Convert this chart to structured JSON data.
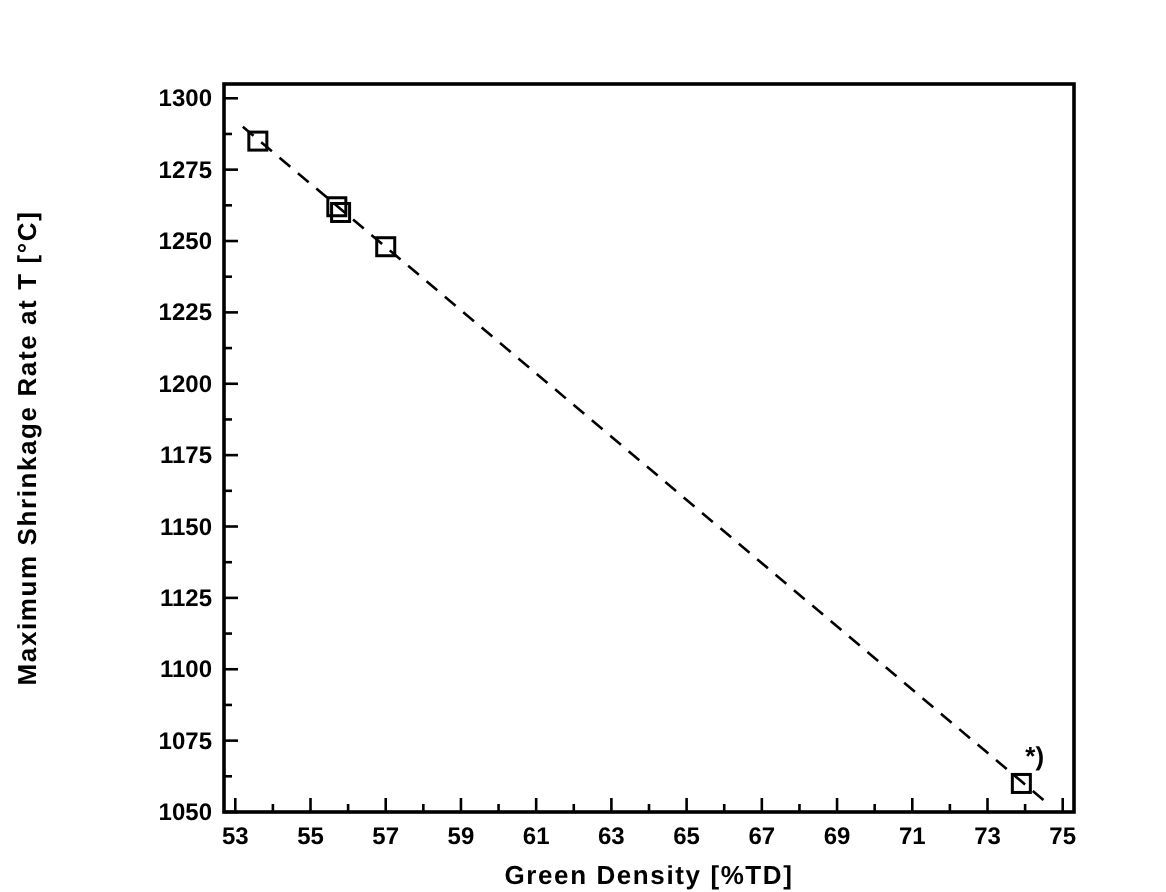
{
  "chart_data": {
    "type": "scatter",
    "xlabel": "Green Density [%TD]",
    "ylabel": "Maximum Shrinkage Rate at T [°C]",
    "xlim": [
      52.7,
      75.3
    ],
    "ylim": [
      1050,
      1305
    ],
    "xticks": [
      53,
      {
        "value": 54,
        "label": null
      },
      55,
      {
        "value": 56,
        "label": null
      },
      57,
      {
        "value": 58,
        "label": null
      },
      59,
      {
        "value": 60,
        "label": null
      },
      61,
      {
        "value": 62,
        "label": null
      },
      63,
      {
        "value": 64,
        "label": null
      },
      65,
      {
        "value": 66,
        "label": null
      },
      67,
      {
        "value": 68,
        "label": null
      },
      69,
      {
        "value": 70,
        "label": null
      },
      71,
      {
        "value": 72,
        "label": null
      },
      73,
      {
        "value": 74,
        "label": null
      },
      75
    ],
    "yticks": [
      1050,
      {
        "value": 1062.5,
        "label": null
      },
      1075,
      {
        "value": 1087.5,
        "label": null
      },
      1100,
      {
        "value": 1112.5,
        "label": null
      },
      1125,
      {
        "value": 1137.5,
        "label": null
      },
      1150,
      {
        "value": 1162.5,
        "label": null
      },
      1175,
      {
        "value": 1187.5,
        "label": null
      },
      1200,
      {
        "value": 1212.5,
        "label": null
      },
      1225,
      {
        "value": 1237.5,
        "label": null
      },
      1250,
      {
        "value": 1262.5,
        "label": null
      },
      1275,
      {
        "value": 1287.5,
        "label": null
      },
      1300
    ],
    "grid": false,
    "series": [
      {
        "color": "#000000",
        "marker": "square",
        "x": [
          53.6,
          55.7,
          55.8,
          57.0,
          73.9
        ],
        "values": [
          1285,
          1262,
          1260,
          1248,
          1060
        ]
      },
      {
        "type": "line",
        "color": "#000000",
        "line_style": "dashed",
        "marker": "none",
        "x": [
          53.2,
          74.6
        ],
        "values": [
          1290,
          1053
        ]
      }
    ],
    "annotations": [
      {
        "text": "*)",
        "x": 73.9,
        "y": 1060
      }
    ]
  }
}
